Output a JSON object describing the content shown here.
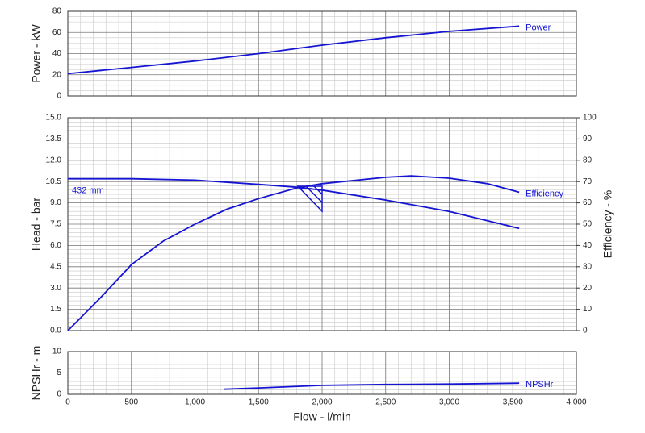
{
  "chart_data": [
    {
      "type": "line",
      "ylabel": "Power - kW",
      "xlim": [
        0,
        4000
      ],
      "ylim": [
        0,
        80
      ],
      "yticks": [
        0,
        20,
        40,
        60,
        80
      ],
      "grid": true,
      "series": [
        {
          "name": "Power",
          "color": "#1414d2",
          "x": [
            0,
            500,
            1000,
            1500,
            2000,
            2500,
            3000,
            3550
          ],
          "values": [
            21,
            27,
            33,
            40,
            48,
            55,
            61,
            66
          ]
        }
      ]
    },
    {
      "type": "line",
      "ylabel": "Head - bar",
      "y2label": "Efficiency - %",
      "xlim": [
        0,
        4000
      ],
      "ylim": [
        0,
        15
      ],
      "grid": true,
      "yticks": [
        {
          "value": 0,
          "label": "0.0"
        },
        1.5,
        {
          "value": 3,
          "label": "3.0"
        },
        4.5,
        {
          "value": 6,
          "label": "6.0"
        },
        7.5,
        {
          "value": 9,
          "label": "9.0"
        },
        10.5,
        {
          "value": 12,
          "label": "12.0"
        },
        13.5,
        {
          "value": 15,
          "label": "15.0"
        }
      ],
      "y2lim": [
        0,
        100
      ],
      "y2ticks": [
        0,
        10,
        20,
        30,
        40,
        50,
        60,
        70,
        80,
        90,
        100
      ],
      "series": [
        {
          "name": "432 mm",
          "color": "#1414d2",
          "x": [
            0,
            500,
            1000,
            1500,
            1800,
            2000,
            2500,
            3000,
            3550
          ],
          "values": [
            10.7,
            10.7,
            10.6,
            10.3,
            10.1,
            9.9,
            9.2,
            8.4,
            7.2
          ]
        },
        {
          "name": "Efficiency",
          "color": "#1414d2",
          "axis": "y2",
          "x": [
            0,
            100,
            250,
            500,
            750,
            1000,
            1250,
            1500,
            1800,
            2000,
            2500,
            2700,
            3000,
            3300,
            3550
          ],
          "values": [
            0,
            6,
            15,
            31,
            42,
            50,
            57,
            62,
            67,
            69,
            72,
            72.7,
            71.6,
            69,
            65
          ]
        }
      ]
    },
    {
      "type": "line",
      "ylabel": "NPSHr - m",
      "xlabel": "Flow - l/min",
      "xlim": [
        0,
        4000
      ],
      "ylim": [
        0,
        10
      ],
      "yticks": [
        0,
        5,
        10
      ],
      "grid": true,
      "xticks": [
        0,
        500,
        {
          "value": 1000,
          "label": "1,000"
        },
        {
          "value": 1500,
          "label": "1,500"
        },
        {
          "value": 2000,
          "label": "2,000"
        },
        {
          "value": 2500,
          "label": "2,500"
        },
        {
          "value": 3000,
          "label": "3,000"
        },
        {
          "value": 3500,
          "label": "3,500"
        },
        {
          "value": 4000,
          "label": "4,000"
        }
      ],
      "series": [
        {
          "name": "NPSHr",
          "color": "#1414d2",
          "x": [
            1230,
            1500,
            2000,
            2500,
            3000,
            3550
          ],
          "values": [
            1.2,
            1.5,
            2.1,
            2.3,
            2.4,
            2.6
          ]
        }
      ]
    }
  ]
}
